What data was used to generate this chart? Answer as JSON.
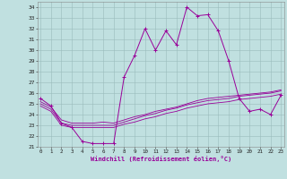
{
  "xlabel": "Windchill (Refroidissement éolien,°C)",
  "line_color": "#990099",
  "bg_color": "#c0e0e0",
  "grid_color": "#99bbbb",
  "series": [
    [
      25.5,
      24.8,
      23.2,
      22.8,
      21.5,
      21.3,
      21.3,
      21.3,
      27.5,
      29.5,
      32.0,
      30.0,
      31.8,
      30.5,
      34.0,
      33.2,
      33.3,
      31.8,
      29.0,
      25.5,
      24.3,
      24.5,
      24.0,
      25.8
    ],
    [
      25.2,
      24.7,
      23.5,
      23.2,
      23.2,
      23.2,
      23.3,
      23.2,
      23.5,
      23.8,
      24.0,
      24.3,
      24.5,
      24.7,
      25.0,
      25.3,
      25.5,
      25.6,
      25.7,
      25.8,
      25.9,
      26.0,
      26.1,
      26.3
    ],
    [
      25.0,
      24.5,
      23.2,
      23.0,
      23.0,
      23.0,
      23.0,
      23.0,
      23.3,
      23.6,
      23.9,
      24.1,
      24.4,
      24.6,
      24.9,
      25.1,
      25.3,
      25.4,
      25.5,
      25.7,
      25.8,
      25.9,
      26.0,
      26.2
    ],
    [
      24.8,
      24.3,
      23.0,
      22.8,
      22.8,
      22.8,
      22.8,
      22.8,
      23.1,
      23.3,
      23.6,
      23.8,
      24.1,
      24.3,
      24.6,
      24.8,
      25.0,
      25.1,
      25.2,
      25.4,
      25.5,
      25.6,
      25.7,
      25.9
    ]
  ],
  "yticks": [
    21,
    22,
    23,
    24,
    25,
    26,
    27,
    28,
    29,
    30,
    31,
    32,
    33,
    34
  ],
  "xticks": [
    0,
    1,
    2,
    3,
    4,
    5,
    6,
    7,
    8,
    9,
    10,
    11,
    12,
    13,
    14,
    15,
    16,
    17,
    18,
    19,
    20,
    21,
    22,
    23
  ],
  "ylim_min": 21,
  "ylim_max": 34.5,
  "xlim_min": -0.3,
  "xlim_max": 23.3
}
